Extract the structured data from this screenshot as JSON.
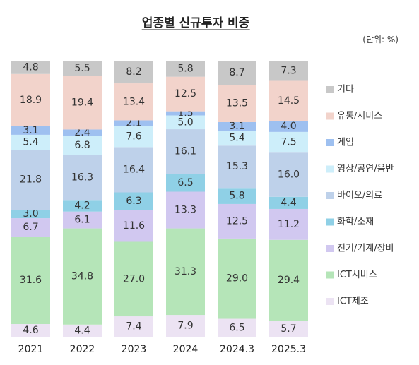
{
  "chart_data": {
    "type": "bar",
    "stacked": true,
    "percent": true,
    "title": "업종별 신규투자 비중",
    "unit": "(단위: %)",
    "categories": [
      "2021",
      "2022",
      "2023",
      "2024",
      "2024.3",
      "2025.3"
    ],
    "ylim": [
      0,
      100
    ],
    "grid": false,
    "legend_position": "right",
    "series": [
      {
        "name": "ICT제조",
        "color": "#ece3f3",
        "values": [
          4.6,
          4.4,
          7.4,
          7.9,
          6.5,
          5.7
        ]
      },
      {
        "name": "ICT서비스",
        "color": "#b5e5b8",
        "values": [
          31.6,
          34.8,
          27.0,
          31.3,
          29.0,
          29.4
        ]
      },
      {
        "name": "전기/기계/장비",
        "color": "#d1c8f0",
        "values": [
          6.7,
          6.1,
          11.6,
          13.3,
          12.5,
          11.2
        ]
      },
      {
        "name": "화학/소재",
        "color": "#8fd0e6",
        "values": [
          3.0,
          4.2,
          6.3,
          6.5,
          5.8,
          4.4
        ]
      },
      {
        "name": "바이오/의료",
        "color": "#bed1ea",
        "values": [
          21.8,
          16.3,
          16.4,
          16.1,
          15.3,
          16.0
        ]
      },
      {
        "name": "영상/공연/음반",
        "color": "#cdeefa",
        "values": [
          5.4,
          6.8,
          7.6,
          5.0,
          5.4,
          7.5
        ]
      },
      {
        "name": "게임",
        "color": "#9ec0f0",
        "values": [
          3.1,
          2.4,
          2.1,
          1.5,
          3.1,
          4.0
        ]
      },
      {
        "name": "유통/서비스",
        "color": "#f2d3cb",
        "values": [
          18.9,
          19.4,
          13.4,
          12.5,
          13.5,
          14.5
        ]
      },
      {
        "name": "기타",
        "color": "#c8c8c8",
        "values": [
          4.8,
          5.5,
          8.2,
          5.8,
          8.7,
          7.3
        ]
      }
    ]
  }
}
